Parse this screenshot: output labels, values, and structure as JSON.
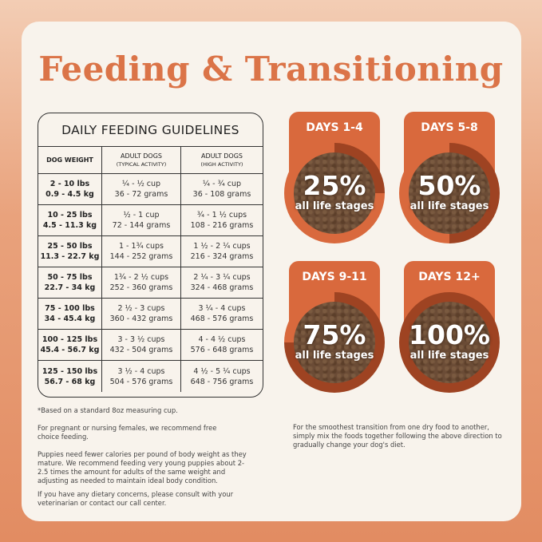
{
  "title": "Feeding & Transitioning",
  "table": {
    "title": "DAILY FEEDING GUIDELINES",
    "headers": [
      {
        "main": "DOG WEIGHT",
        "sub": ""
      },
      {
        "main": "ADULT DOGS",
        "sub": "(TYPICAL ACTIVITY)"
      },
      {
        "main": "ADULT DOGS",
        "sub": "(HIGH ACTIVITY)"
      }
    ],
    "rows": [
      {
        "lbs": "2 - 10 lbs",
        "kg": "0.9 - 4.5 kg",
        "t_cups": "¼ - ½ cup",
        "t_g": "36 - 72 grams",
        "h_cups": "¼ - ¾ cup",
        "h_g": "36 - 108 grams"
      },
      {
        "lbs": "10 - 25 lbs",
        "kg": "4.5 - 11.3 kg",
        "t_cups": "½ - 1 cup",
        "t_g": "72 - 144 grams",
        "h_cups": "¾ - 1 ½ cups",
        "h_g": "108 - 216 grams"
      },
      {
        "lbs": "25 - 50 lbs",
        "kg": "11.3 - 22.7 kg",
        "t_cups": "1 - 1¾ cups",
        "t_g": "144 - 252 grams",
        "h_cups": "1 ½ - 2 ¼ cups",
        "h_g": "216 - 324 grams"
      },
      {
        "lbs": "50 - 75 lbs",
        "kg": "22.7 - 34 kg",
        "t_cups": "1¾ - 2 ½ cups",
        "t_g": "252 - 360 grams",
        "h_cups": "2 ¼ - 3 ¼ cups",
        "h_g": "324 - 468 grams"
      },
      {
        "lbs": "75 - 100 lbs",
        "kg": "34 - 45.4 kg",
        "t_cups": "2 ½ - 3 cups",
        "t_g": "360 - 432 grams",
        "h_cups": "3 ¼ - 4 cups",
        "h_g": "468 - 576 grams"
      },
      {
        "lbs": "100 - 125 lbs",
        "kg": "45.4 - 56.7 kg",
        "t_cups": "3 - 3 ½ cups",
        "t_g": "432 - 504 grams",
        "h_cups": "4 - 4 ½ cups",
        "h_g": "576 - 648 grams"
      },
      {
        "lbs": "125 - 150 lbs",
        "kg": "56.7 - 68 kg",
        "t_cups": "3 ½ - 4 cups",
        "t_g": "504 - 576 grams",
        "h_cups": "4 ½ - 5 ¼ cups",
        "h_g": "648 - 756 grams"
      }
    ]
  },
  "notes": {
    "n1": "*Based on a standard 8oz measuring cup.",
    "n2": "For pregnant or nursing females, we recommend free choice feeding.",
    "n3": "Puppies need fewer calories per pound of body weight as they mature. We recommend feeding very young puppies about 2-2.5 times the amount for adults of the same weight and adjusting as needed to maintain ideal body condition.",
    "n4": "If you have any dietary concerns, please consult with your veterinarian or contact our call center.",
    "right": "For the smoothest transition from one dry food to another, simply mix the foods together following the above direction to gradually change your dog's diet."
  },
  "transition": [
    {
      "days": "DAYS 1-4",
      "percent": "25%",
      "fraction": 0.25,
      "stage": "all life stages"
    },
    {
      "days": "DAYS 5-8",
      "percent": "50%",
      "fraction": 0.5,
      "stage": "all life stages"
    },
    {
      "days": "DAYS 9-11",
      "percent": "75%",
      "fraction": 0.75,
      "stage": "all life stages"
    },
    {
      "days": "DAYS 12+",
      "percent": "100%",
      "fraction": 1.0,
      "stage": "all life stages"
    }
  ],
  "colors": {
    "accent": "#db7448",
    "ring_light": "#d9693d",
    "ring_dark": "#9e4322",
    "card": "#f8f3ec"
  }
}
